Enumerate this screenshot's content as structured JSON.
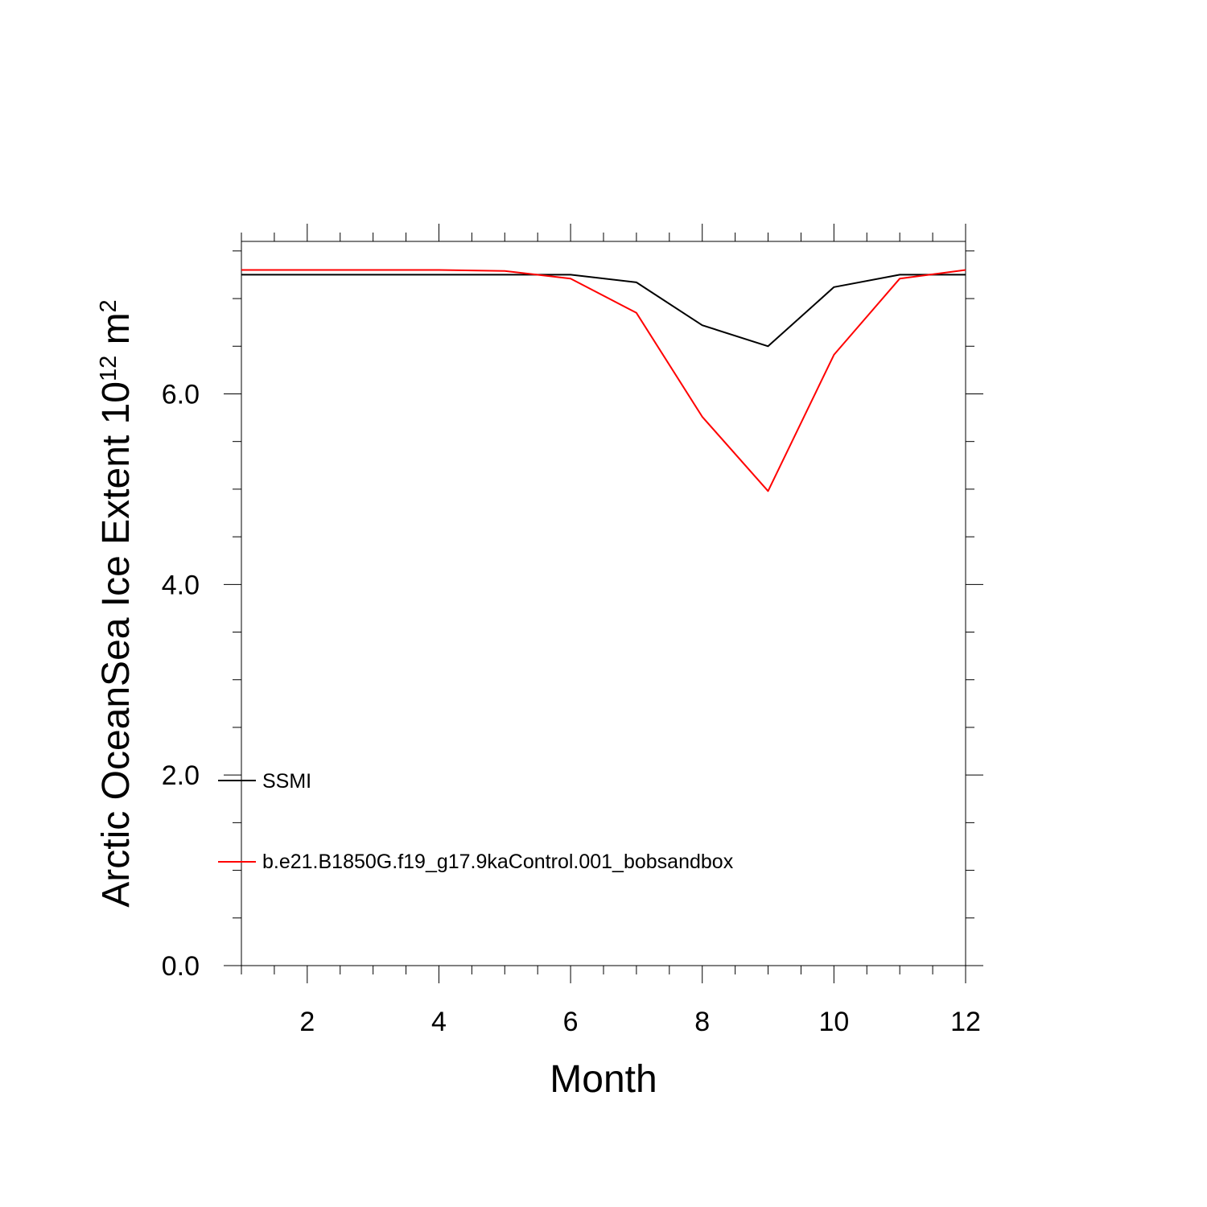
{
  "chart_data": {
    "type": "line",
    "xlabel": "Month",
    "ylabel": {
      "main": "Arctic OceanSea Ice Extent 10",
      "exponent": "12",
      "unit": " m",
      "unit_exponent": "2"
    },
    "xlim": [
      1,
      12
    ],
    "ylim": [
      0,
      7.6
    ],
    "x_ticks": [
      2,
      4,
      6,
      8,
      10,
      12
    ],
    "x_minor_step": 0.5,
    "y_ticks": [
      0,
      2,
      4,
      6
    ],
    "y_tick_labels": [
      "0.0",
      "2.0",
      "4.0",
      "6.0"
    ],
    "y_minor_step": 0.5,
    "grid": false,
    "legend_placement": "lower-left inside plot",
    "x": [
      1,
      2,
      3,
      4,
      5,
      6,
      7,
      8,
      9,
      10,
      11,
      12
    ],
    "series": [
      {
        "name": "SSMI",
        "color": "#000000",
        "values": [
          7.25,
          7.25,
          7.25,
          7.25,
          7.25,
          7.25,
          7.17,
          6.72,
          6.5,
          7.12,
          7.25,
          7.25
        ]
      },
      {
        "name": "b.e21.B1850G.f19_g17.9kaControl.001_bobsandbox",
        "color": "#ff0000",
        "values": [
          7.3,
          7.3,
          7.3,
          7.3,
          7.29,
          7.21,
          6.85,
          5.76,
          4.98,
          6.41,
          7.21,
          7.3
        ]
      }
    ]
  }
}
